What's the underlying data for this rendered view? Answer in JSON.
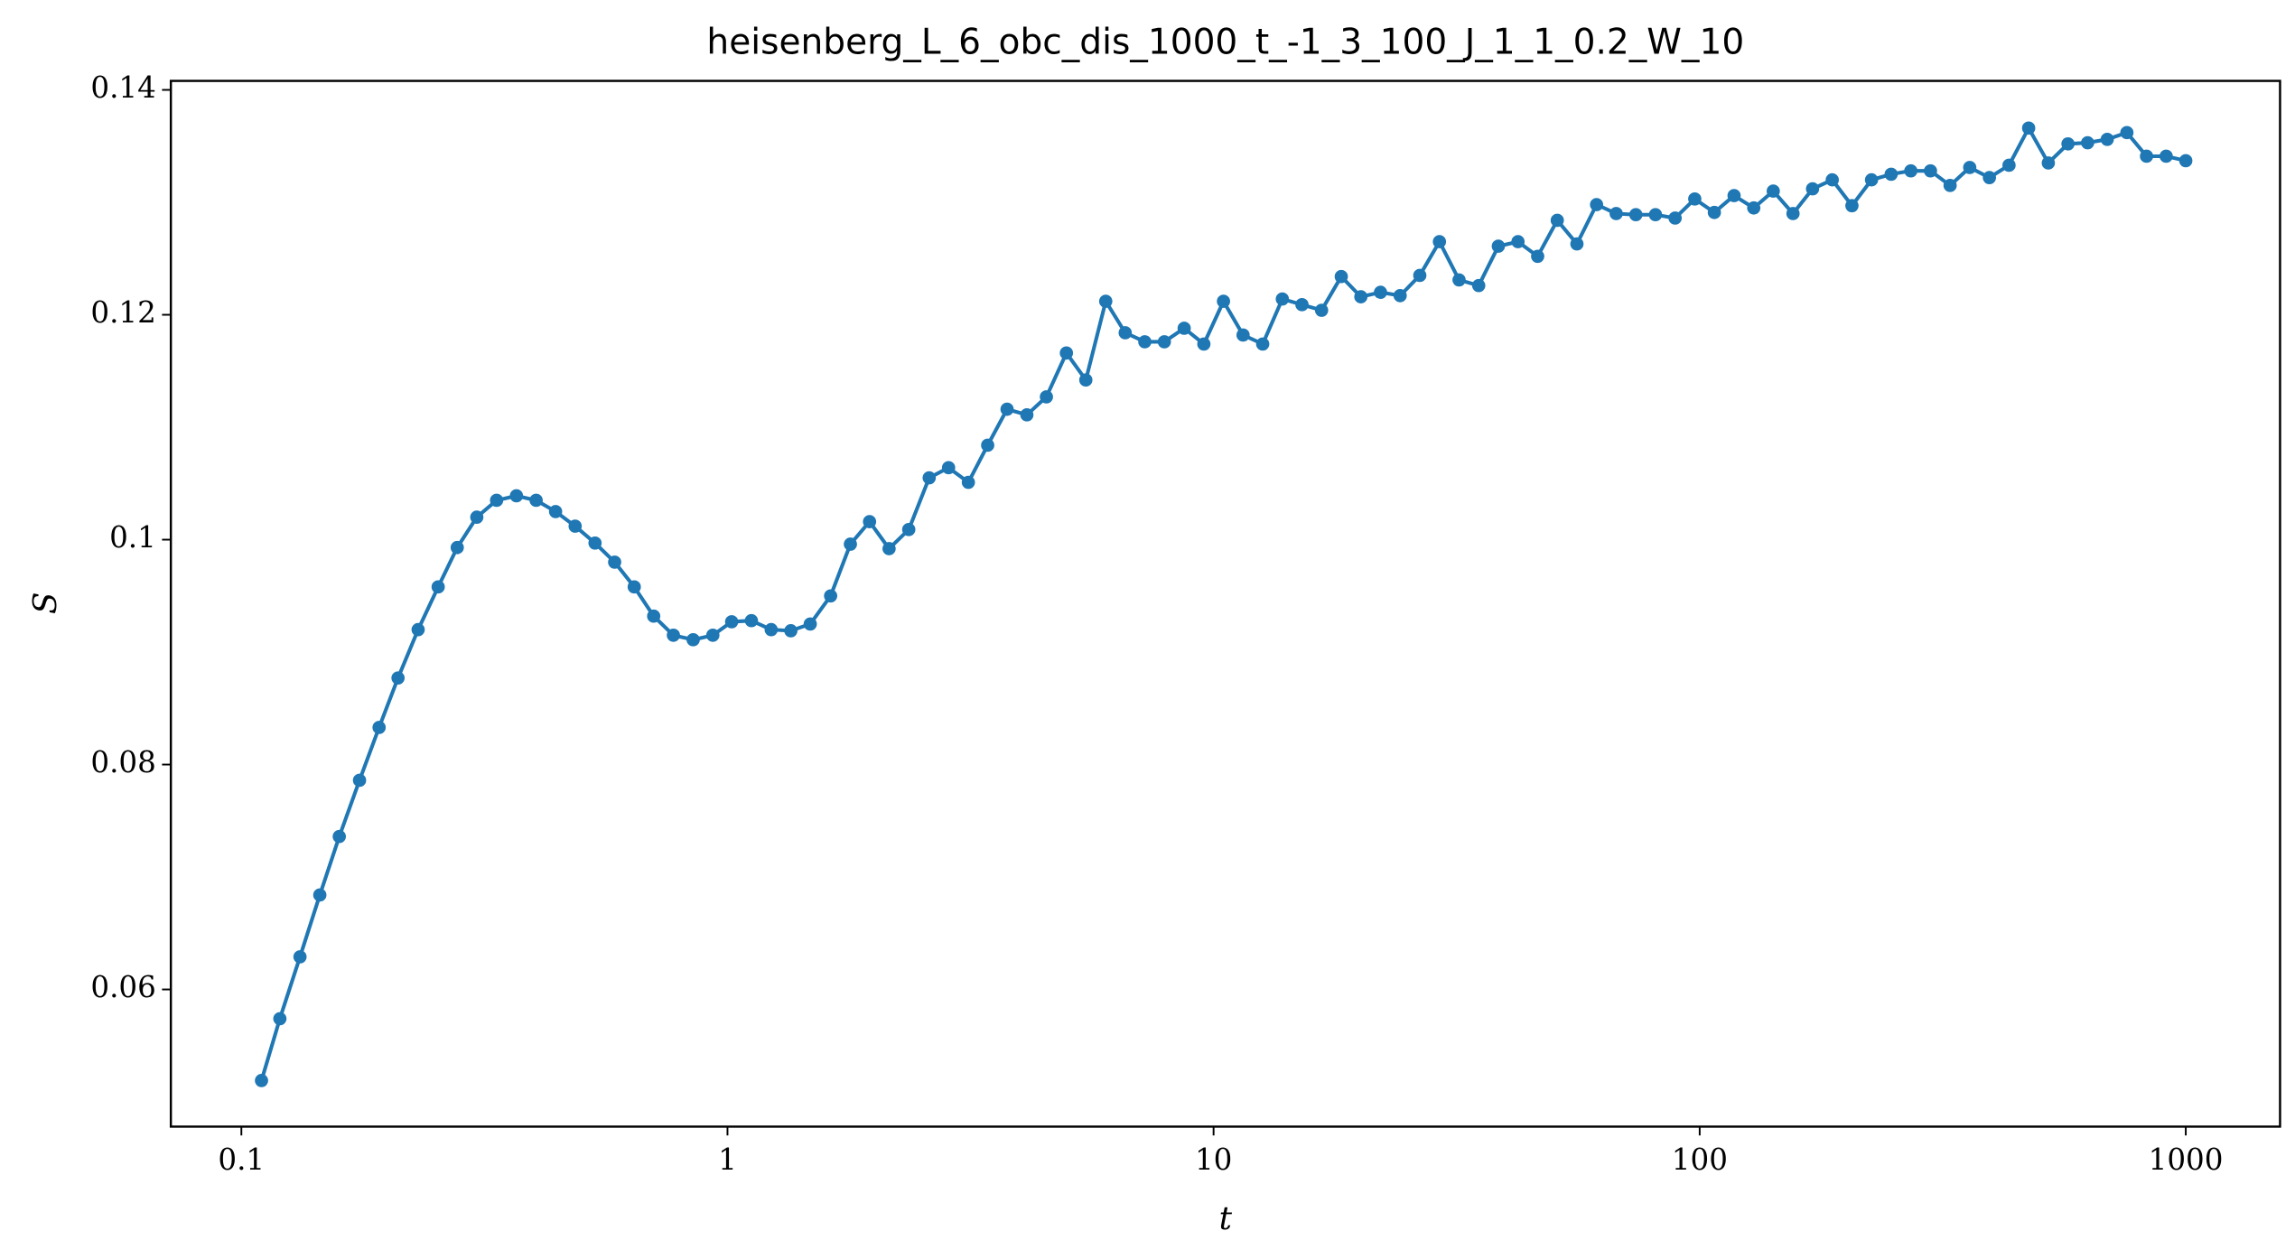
{
  "chart_data": {
    "type": "line",
    "title": "heisenberg_L_6_obc_dis_1000_t_-1_3_100_J_1_1_0.2_W_10",
    "x_label": "t",
    "y_label": "S",
    "x_scale": "log",
    "grid": false,
    "markers": true,
    "xlim": [
      0.0716,
      1563
    ],
    "xticks": [
      0.1,
      1,
      10,
      100,
      1000
    ],
    "ylim": [
      0.0478,
      0.1408
    ],
    "yticks": [
      0.06,
      0.08,
      0.1,
      0.12,
      0.14
    ],
    "x": [
      0.11,
      0.12,
      0.132,
      0.145,
      0.159,
      0.175,
      0.192,
      0.21,
      0.231,
      0.254,
      0.278,
      0.305,
      0.335,
      0.368,
      0.404,
      0.443,
      0.486,
      0.534,
      0.586,
      0.643,
      0.705,
      0.774,
      0.85,
      0.933,
      1.02,
      1.12,
      1.23,
      1.35,
      1.48,
      1.63,
      1.79,
      1.96,
      2.15,
      2.36,
      2.6,
      2.85,
      3.13,
      3.43,
      3.76,
      4.13,
      4.53,
      4.98,
      5.46,
      6.0,
      6.58,
      7.22,
      7.92,
      8.7,
      9.55,
      10.48,
      11.5,
      12.62,
      13.85,
      15.2,
      16.68,
      18.31,
      20.09,
      22.05,
      24.2,
      26.56,
      29.15,
      31.99,
      35.11,
      38.53,
      42.29,
      46.42,
      50.94,
      55.91,
      61.36,
      67.34,
      73.91,
      81.11,
      89.02,
      97.7,
      107.2,
      117.7,
      129.2,
      141.7,
      155.6,
      170.7,
      187.4,
      205.7,
      225.7,
      247.7,
      271.9,
      298.4,
      327.5,
      359.4,
      394.5,
      432.9,
      475.1,
      521.5,
      572.4,
      628.2,
      689.4,
      756.6,
      830.4,
      911.4,
      1000
    ],
    "series": [
      {
        "name": "S",
        "color": "#1f77b4",
        "values": [
          0.0519,
          0.0574,
          0.0629,
          0.0684,
          0.0736,
          0.0786,
          0.0833,
          0.0877,
          0.092,
          0.0958,
          0.0993,
          0.102,
          0.1035,
          0.1039,
          0.1035,
          0.1025,
          0.1012,
          0.0997,
          0.098,
          0.0958,
          0.0932,
          0.0915,
          0.0911,
          0.0915,
          0.0927,
          0.0928,
          0.092,
          0.0919,
          0.0925,
          0.095,
          0.0996,
          0.1016,
          0.0992,
          0.1009,
          0.1055,
          0.1064,
          0.1051,
          0.1084,
          0.1116,
          0.1111,
          0.1127,
          0.1166,
          0.1142,
          0.1212,
          0.1184,
          0.1176,
          0.1176,
          0.1188,
          0.1174,
          0.1212,
          0.1182,
          0.1174,
          0.1214,
          0.1209,
          0.1204,
          0.1234,
          0.1216,
          0.122,
          0.1217,
          0.1235,
          0.1265,
          0.1231,
          0.1226,
          0.1261,
          0.1265,
          0.1252,
          0.1284,
          0.1263,
          0.1298,
          0.129,
          0.1289,
          0.1289,
          0.1286,
          0.1303,
          0.1291,
          0.1306,
          0.1295,
          0.131,
          0.129,
          0.1312,
          0.132,
          0.1297,
          0.132,
          0.1325,
          0.1328,
          0.1328,
          0.1315,
          0.1331,
          0.1322,
          0.1333,
          0.1366,
          0.1335,
          0.1352,
          0.1353,
          0.1356,
          0.1362,
          0.1341,
          0.1341,
          0.1337
        ]
      }
    ]
  }
}
